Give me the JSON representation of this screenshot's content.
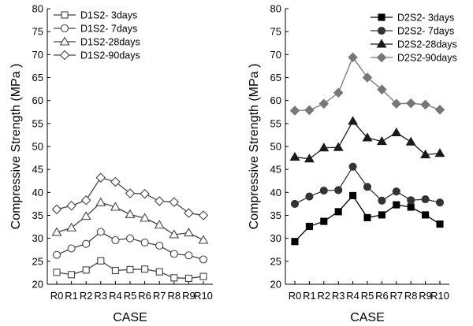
{
  "chart_data": [
    {
      "type": "line",
      "title": "",
      "xlabel": "CASE",
      "ylabel": "Compressive Strength (MPa )",
      "categories": [
        "R0",
        "R1",
        "R2",
        "R3",
        "R4",
        "R5",
        "R6",
        "R7",
        "R8",
        "R9",
        "R10"
      ],
      "ylim": [
        20,
        80
      ],
      "yticks": [
        20,
        25,
        30,
        35,
        40,
        45,
        50,
        55,
        60,
        65,
        70,
        75,
        80
      ],
      "grid": false,
      "legend_position": "top-left",
      "marker_fill": "open",
      "series": [
        {
          "name": "D1S2- 3days",
          "marker": "square",
          "color": "#444444",
          "values": [
            22.6,
            22.1,
            23.1,
            25.1,
            23.0,
            23.2,
            23.3,
            22.7,
            21.4,
            21.3,
            21.7
          ]
        },
        {
          "name": "D1S2- 7days",
          "marker": "circle",
          "color": "#444444",
          "values": [
            26.4,
            27.8,
            28.8,
            31.4,
            29.6,
            30.0,
            29.1,
            28.4,
            26.6,
            26.3,
            25.4
          ]
        },
        {
          "name": "D1S2-28days",
          "marker": "triangle",
          "color": "#444444",
          "values": [
            31.3,
            32.3,
            34.8,
            37.8,
            36.8,
            35.2,
            34.4,
            32.9,
            30.8,
            31.2,
            29.6
          ]
        },
        {
          "name": "D1S2-90days",
          "marker": "diamond",
          "color": "#444444",
          "values": [
            36.3,
            37.1,
            38.3,
            43.2,
            42.3,
            39.8,
            39.7,
            38.1,
            37.9,
            35.5,
            35.0
          ]
        }
      ]
    },
    {
      "type": "line",
      "title": "",
      "xlabel": "CASE",
      "ylabel": "Compressive Strength (MPa )",
      "categories": [
        "R0",
        "R1",
        "R2",
        "R3",
        "R4",
        "R5",
        "R6",
        "R7",
        "R8",
        "R9",
        "R10"
      ],
      "ylim": [
        20,
        80
      ],
      "yticks": [
        20,
        25,
        30,
        35,
        40,
        45,
        50,
        55,
        60,
        65,
        70,
        75,
        80
      ],
      "grid": false,
      "legend_position": "top-right",
      "marker_fill": "filled",
      "series": [
        {
          "name": "D2S2- 3days",
          "marker": "square",
          "color": "#000000",
          "values": [
            29.3,
            32.6,
            33.7,
            35.8,
            39.3,
            34.5,
            35.1,
            37.3,
            36.8,
            35.1,
            33.1
          ]
        },
        {
          "name": "D2S2- 7days",
          "marker": "circle",
          "color": "#333333",
          "values": [
            37.5,
            39.1,
            40.4,
            40.5,
            45.6,
            41.2,
            38.2,
            40.2,
            38.3,
            38.5,
            37.8
          ]
        },
        {
          "name": "D2S2-28days",
          "marker": "triangle",
          "color": "#1a1a1a",
          "values": [
            47.7,
            47.3,
            49.7,
            49.8,
            55.5,
            51.9,
            51.1,
            53.0,
            51.0,
            48.2,
            48.5
          ]
        },
        {
          "name": "D2S2-90days",
          "marker": "diamond",
          "color": "#777777",
          "values": [
            57.8,
            57.9,
            59.3,
            61.7,
            69.4,
            65.0,
            62.4,
            59.3,
            59.4,
            59.1,
            58.0
          ]
        }
      ]
    }
  ]
}
